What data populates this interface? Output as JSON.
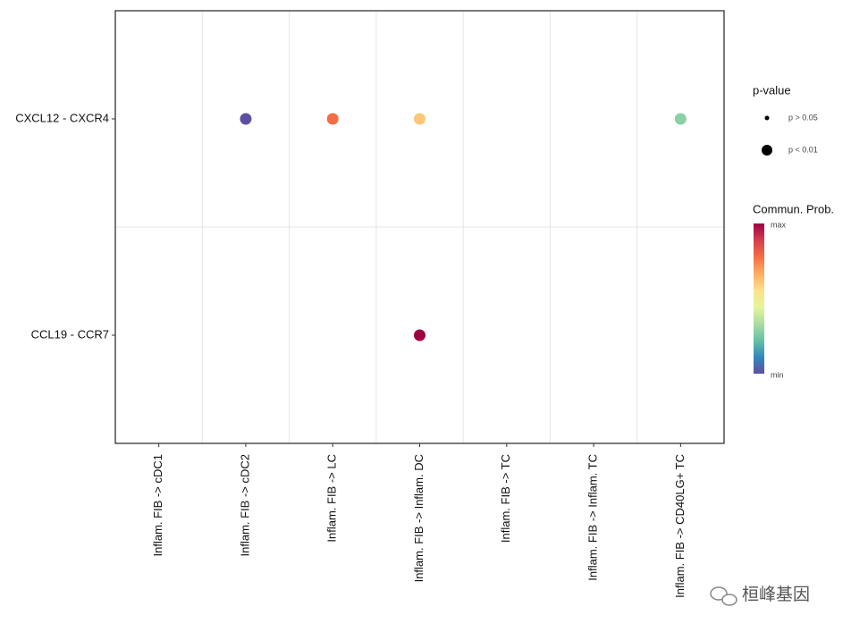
{
  "chart_data": {
    "type": "dot",
    "x_categories": [
      "Inflam. FIB -> cDC1",
      "Inflam. FIB -> cDC2",
      "Inflam. FIB -> LC",
      "Inflam. FIB -> Inflam. DC",
      "Inflam. FIB -> TC",
      "Inflam. FIB -> Inflam. TC",
      "Inflam. FIB -> CD40LG+ TC"
    ],
    "y_categories": [
      "CXCL12 - CXCR4",
      "CCL19 - CCR7"
    ],
    "points": [
      {
        "x": "Inflam. FIB -> cDC2",
        "y": "CXCL12 - CXCR4",
        "color": "#5e4fa2",
        "pvalue": "p < 0.01"
      },
      {
        "x": "Inflam. FIB -> LC",
        "y": "CXCL12 - CXCR4",
        "color": "#f46d43",
        "pvalue": "p < 0.01"
      },
      {
        "x": "Inflam. FIB -> Inflam. DC",
        "y": "CXCL12 - CXCR4",
        "color": "#fdc776",
        "pvalue": "p < 0.01"
      },
      {
        "x": "Inflam. FIB -> CD40LG+ TC",
        "y": "CXCL12 - CXCR4",
        "color": "#88d1a4",
        "pvalue": "p < 0.01"
      },
      {
        "x": "Inflam. FIB -> Inflam. DC",
        "y": "CCL19 - CCR7",
        "color": "#9e0142",
        "pvalue": "p < 0.01"
      }
    ],
    "size_legend": {
      "title": "p-value",
      "labels": [
        "p > 0.05",
        "p < 0.01"
      ]
    },
    "color_legend": {
      "title": "Commun. Prob.",
      "max_label": "max",
      "min_label": "min",
      "colors": [
        "#5e4fa2",
        "#3288bd",
        "#66c2a5",
        "#abdda4",
        "#e6f598",
        "#fee08b",
        "#fdae61",
        "#f46d43",
        "#d53e4f",
        "#9e0142"
      ]
    },
    "grid": true,
    "watermark": "桓峰基因"
  }
}
